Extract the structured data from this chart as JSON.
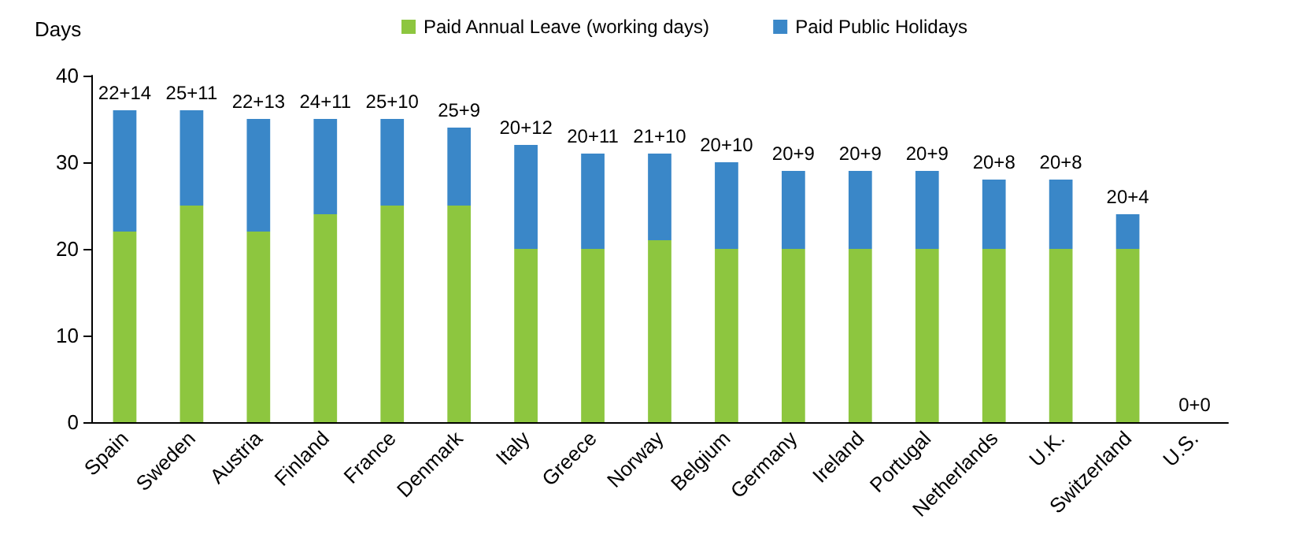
{
  "chart_data": {
    "type": "bar",
    "stacked": true,
    "ylabel": "Days",
    "categories": [
      "Spain",
      "Sweden",
      "Austria",
      "Finland",
      "France",
      "Denmark",
      "Italy",
      "Greece",
      "Norway",
      "Belgium",
      "Germany",
      "Ireland",
      "Portugal",
      "Netherlands",
      "U.K.",
      "Switzerland",
      "U.S."
    ],
    "series": [
      {
        "name": "Paid Annual Leave (working days)",
        "color": "#8dc63f",
        "values": [
          22,
          25,
          22,
          24,
          25,
          25,
          20,
          20,
          21,
          20,
          20,
          20,
          20,
          20,
          20,
          20,
          0
        ]
      },
      {
        "name": "Paid Public Holidays",
        "color": "#3a87c8",
        "values": [
          14,
          11,
          13,
          11,
          10,
          9,
          12,
          11,
          10,
          10,
          9,
          9,
          9,
          8,
          8,
          4,
          0
        ]
      }
    ],
    "totals": [
      "22+14",
      "25+11",
      "22+13",
      "24+11",
      "25+10",
      "25+9",
      "20+12",
      "20+11",
      "21+10",
      "20+10",
      "20+9",
      "20+9",
      "20+9",
      "20+8",
      "20+8",
      "20+4",
      "0+0"
    ],
    "ylim": [
      0,
      40
    ],
    "yticks": [
      0,
      10,
      20,
      30,
      40
    ],
    "grid": false,
    "legend": "top"
  }
}
